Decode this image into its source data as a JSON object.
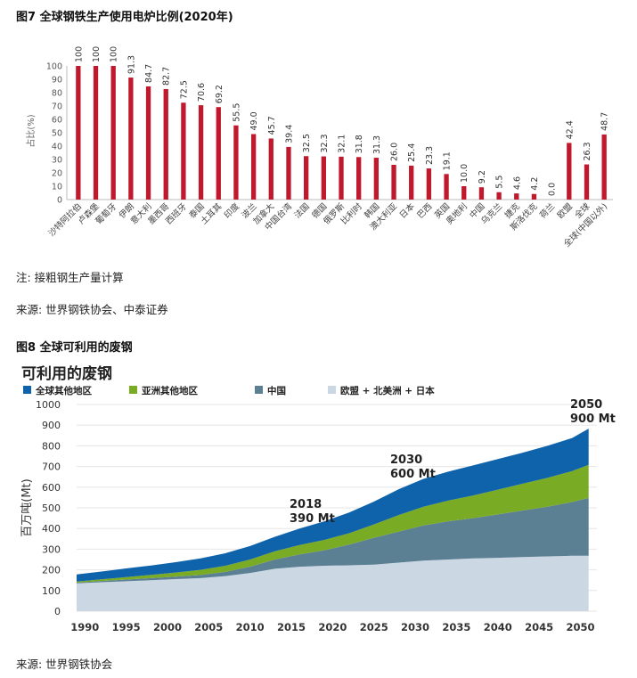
{
  "figure7": {
    "title": "图7 全球钢铁生产使用电炉比例(2020年)",
    "note": "注: 接粗钢生产量计算",
    "source": "来源: 世界钢铁协会、中泰证券"
  },
  "figure8": {
    "title": "图8 全球可利用的废钢",
    "source": "来源: 世界钢铁协会"
  },
  "chart_data": [
    {
      "type": "bar",
      "ylabel": "占比(%)",
      "ylim": [
        0,
        100
      ],
      "yticks": [
        0,
        10,
        20,
        30,
        40,
        50,
        60,
        70,
        80,
        90,
        100
      ],
      "color": "#c0182c",
      "categories": [
        "沙特阿拉伯",
        "卢森堡",
        "葡萄牙",
        "伊朗",
        "意大利",
        "墨西哥",
        "西班牙",
        "泰国",
        "土耳其",
        "印度",
        "波兰",
        "加拿大",
        "中国台湾",
        "法国",
        "德国",
        "俄罗斯",
        "比利时",
        "韩国",
        "澳大利亚",
        "日本",
        "巴西",
        "英国",
        "奥地利",
        "中国",
        "乌克兰",
        "捷克",
        "斯洛伐克",
        "荷兰",
        "欧盟",
        "全球",
        "全球(中国以外)"
      ],
      "values": [
        100.0,
        100.0,
        100.0,
        91.3,
        84.7,
        82.7,
        72.5,
        70.6,
        69.2,
        55.5,
        49.0,
        45.7,
        39.4,
        32.5,
        32.3,
        32.1,
        31.8,
        31.3,
        26.0,
        25.4,
        23.3,
        19.1,
        10.0,
        9.2,
        5.5,
        4.6,
        4.2,
        0.0,
        42.4,
        26.3,
        48.7
      ],
      "value_labels": [
        "100.0",
        "100.0",
        "100.0",
        "91.3",
        "84.7",
        "82.7",
        "72.5",
        "70.6",
        "69.2",
        "55.5",
        "49.0",
        "45.7",
        "39.4",
        "32.5",
        "32.3",
        "32.1",
        "31.8",
        "31.3",
        "26.0",
        "25.4",
        "23.3",
        "19.1",
        "10.0",
        "9.2",
        "5.5",
        "4.6",
        "4.2",
        "0.0",
        "42.4",
        "26.3",
        "48.7"
      ]
    },
    {
      "type": "area",
      "stacked": true,
      "title": "可利用的废钢",
      "ylabel": "百万吨(Mt)",
      "ylim": [
        0,
        1000
      ],
      "yticks": [
        0,
        100,
        200,
        300,
        400,
        500,
        600,
        700,
        800,
        900,
        1000
      ],
      "xlim": [
        1989,
        2052
      ],
      "xticks": [
        1990,
        1995,
        2000,
        2005,
        2010,
        2015,
        2020,
        2025,
        2030,
        2035,
        2040,
        2045,
        2050
      ],
      "x": [
        1989,
        1992,
        1995,
        1998,
        2001,
        2004,
        2007,
        2010,
        2013,
        2016,
        2019,
        2022,
        2025,
        2028,
        2031,
        2034,
        2037,
        2040,
        2043,
        2046,
        2049,
        2051
      ],
      "series": [
        {
          "name": "欧盟 + 北美洲 + 日本",
          "color": "#cbd8e3",
          "values": [
            135,
            140,
            145,
            150,
            155,
            160,
            170,
            185,
            205,
            215,
            220,
            222,
            225,
            235,
            245,
            250,
            255,
            258,
            262,
            265,
            268,
            268
          ]
        },
        {
          "name": "中国",
          "color": "#5b7f93",
          "values": [
            3,
            6,
            8,
            10,
            12,
            15,
            20,
            30,
            45,
            60,
            75,
            100,
            130,
            150,
            170,
            185,
            195,
            210,
            225,
            240,
            260,
            280
          ]
        },
        {
          "name": "亚洲其他地区",
          "color": "#7aab24",
          "values": [
            5,
            8,
            12,
            16,
            20,
            25,
            30,
            35,
            40,
            45,
            50,
            55,
            65,
            80,
            90,
            100,
            110,
            120,
            130,
            140,
            150,
            160
          ]
        },
        {
          "name": "全球其他地区",
          "color": "#0f63aa",
          "values": [
            35,
            38,
            42,
            45,
            50,
            55,
            60,
            65,
            70,
            80,
            90,
            100,
            110,
            125,
            135,
            140,
            145,
            148,
            150,
            155,
            160,
            175
          ]
        }
      ],
      "annotations": [
        {
          "year": "2018",
          "value": "390 Mt"
        },
        {
          "year": "2030",
          "value": "600 Mt"
        },
        {
          "year": "2050",
          "value": "900 Mt"
        }
      ]
    }
  ]
}
